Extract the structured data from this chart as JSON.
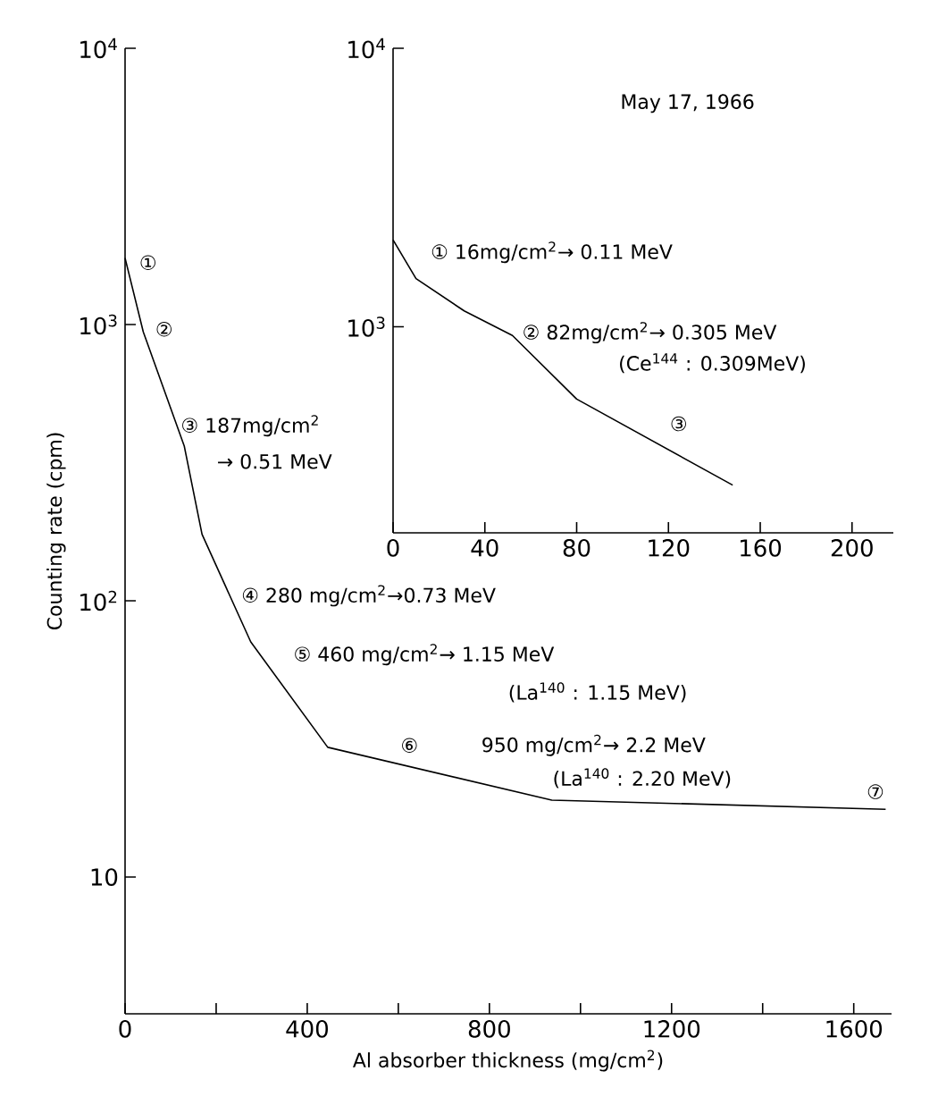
{
  "chart_data": [
    {
      "type": "line",
      "xlabel": "Al absorber thickness (mg/cm$^{2}$)",
      "ylabel": "Counting rate (cpm)",
      "log": "y",
      "grid": false,
      "marker": "none",
      "line_style": "solid",
      "x": [
        0,
        40,
        130,
        169,
        276,
        445,
        937,
        1670
      ],
      "series": [
        {
          "color": "#000000",
          "values": [
            1740,
            940,
            363,
            174,
            71,
            29.5,
            19,
            17.6
          ]
        }
      ],
      "xlim": [
        0,
        1683
      ],
      "ylim": [
        3.2,
        10000
      ],
      "xticks": [
        0,
        {
          "value": 200,
          "label": null
        },
        400,
        {
          "value": 600,
          "label": null
        },
        800,
        {
          "value": 1000,
          "label": null
        },
        1200,
        {
          "value": 1400,
          "label": null
        },
        1600
      ],
      "yticks": [
        10,
        {
          "value": 100,
          "label": "10$^{2}$"
        },
        {
          "value": 1000,
          "label": "10$^{3}$"
        },
        {
          "value": 10000,
          "label": "10$^{4}$"
        }
      ],
      "annotations": [
        "①",
        "②",
        "③ 187mg/cm$^{2}$",
        "→ 0.51 MeV",
        "④ 280 mg/cm$^{2}$→0.73 MeV",
        "⑤ 460 mg/cm$^{2}$→ 1.15 MeV",
        "(La$^{140}$ : 1.15 MeV)",
        "⑥",
        "950 mg/cm$^{2}$→ 2.2 MeV",
        "(La$^{140}$ : 2.20 MeV)",
        "⑦"
      ]
    },
    {
      "type": "line",
      "log": "y",
      "grid": false,
      "marker": "none",
      "line_style": "solid",
      "x": [
        0,
        10,
        31,
        52,
        80,
        148
      ],
      "series": [
        {
          "color": "#000000",
          "values": [
            2050,
            1490,
            1140,
            930,
            550,
            270
          ]
        }
      ],
      "xlim": [
        0,
        218
      ],
      "ylim": [
        182,
        10000
      ],
      "xticks": [
        0,
        40,
        80,
        120,
        160,
        200
      ],
      "yticks": [
        {
          "value": 1000,
          "label": "10$^{3}$"
        },
        {
          "value": 10000,
          "label": "10$^{4}$"
        }
      ],
      "annotations": [
        "May 17, 1966",
        "① 16mg/cm$^{2}$→ 0.11 MeV",
        "② 82mg/cm$^{2}$→ 0.305 MeV",
        "(Ce$^{144}$ : 0.309MeV)",
        "③"
      ]
    }
  ]
}
